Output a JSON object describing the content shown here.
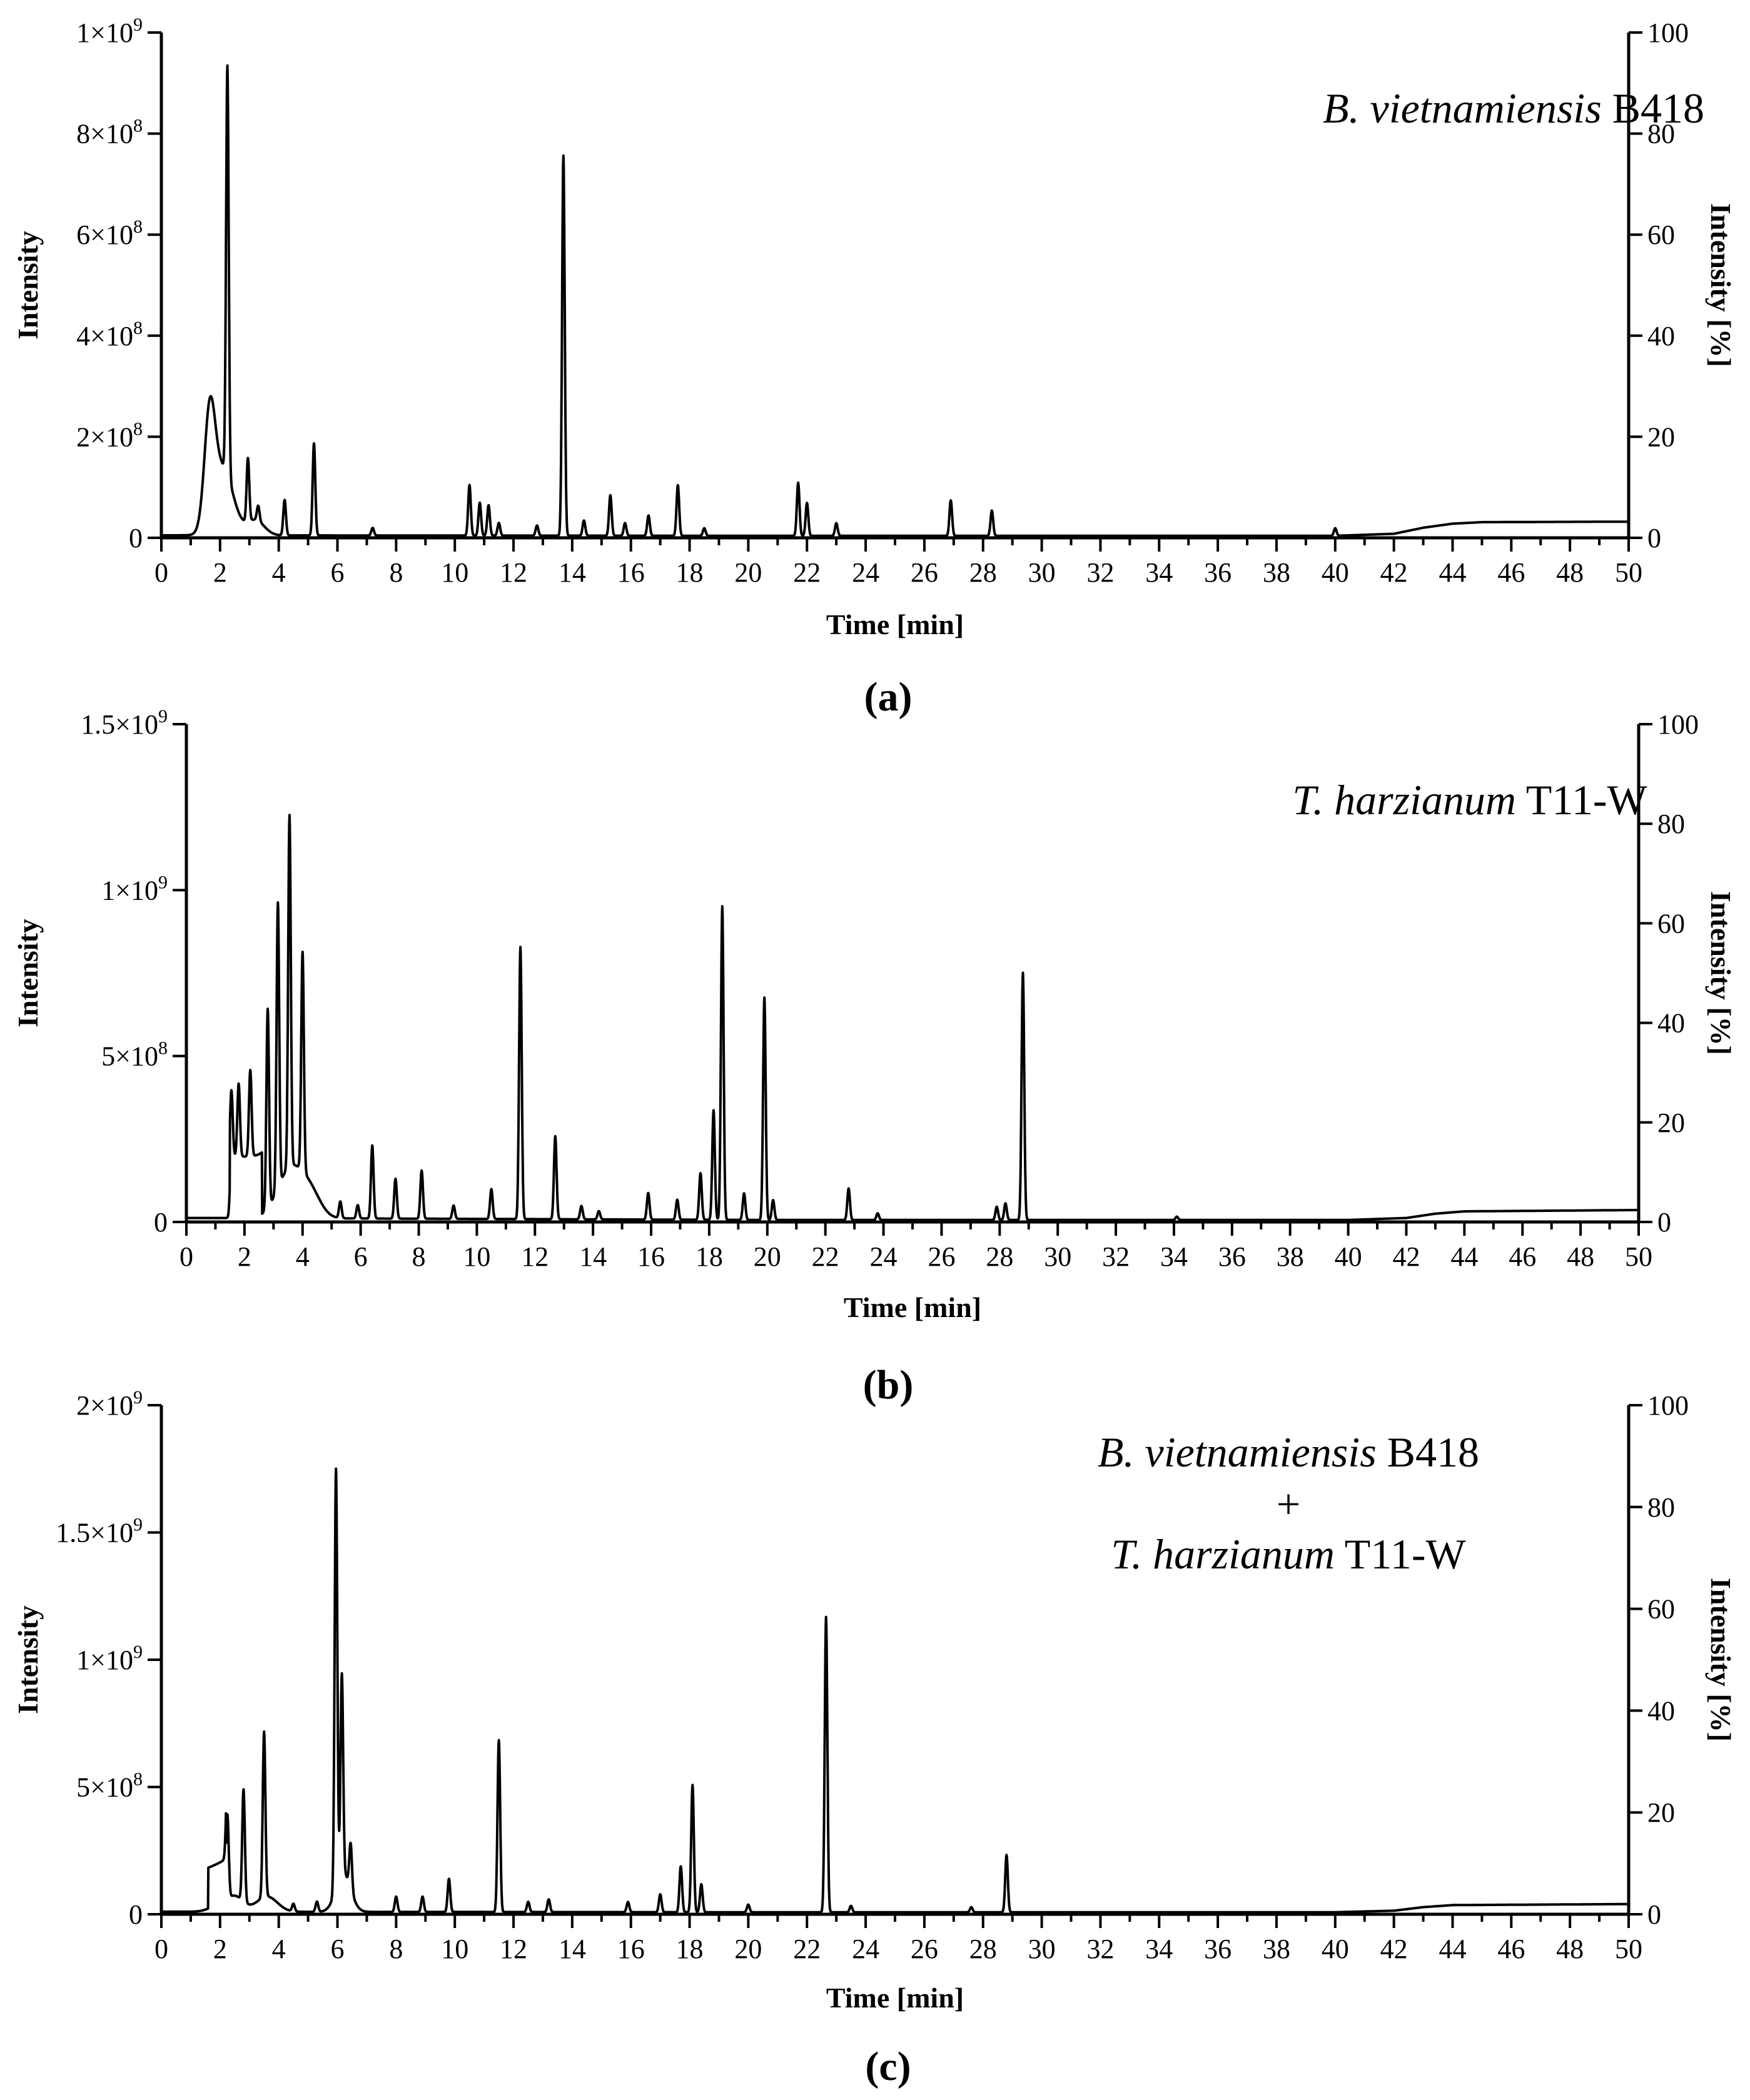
{
  "chart_data": [
    {
      "type": "line",
      "caption": "(a)",
      "annotation": [
        "B. vietnamiensis B418"
      ],
      "annotation_italic": [
        "B. vietnamiensis"
      ],
      "annotation_plain": [
        " B418"
      ],
      "xlabel": "Time [min]",
      "ylabel": "Intensity",
      "y2label": "Intensity [%]",
      "xlim": [
        0,
        50
      ],
      "ylim": [
        0,
        1000000000
      ],
      "y2lim": [
        0,
        100
      ],
      "x_ticks": [
        "0",
        "2",
        "4",
        "6",
        "8",
        "10",
        "12",
        "14",
        "16",
        "18",
        "20",
        "22",
        "24",
        "26",
        "28",
        "30",
        "32",
        "34",
        "36",
        "38",
        "40",
        "42",
        "44",
        "46",
        "48",
        "50"
      ],
      "y_ticks": [
        {
          "base": "0",
          "exp": ""
        },
        {
          "base": "2×10",
          "exp": "8"
        },
        {
          "base": "4×10",
          "exp": "8"
        },
        {
          "base": "6×10",
          "exp": "8"
        },
        {
          "base": "8×10",
          "exp": "8"
        },
        {
          "base": "1×10",
          "exp": "9"
        }
      ],
      "y_tick_values": [
        0,
        200000000,
        400000000,
        600000000,
        800000000,
        1000000000
      ],
      "y2_ticks": [
        "0",
        "20",
        "40",
        "60",
        "80",
        "100"
      ],
      "baseline": [
        [
          0,
          5000000
        ],
        [
          1.5,
          5000000
        ],
        [
          20,
          4000000
        ],
        [
          40,
          4000000
        ],
        [
          42,
          8000000
        ],
        [
          43,
          20000000
        ],
        [
          44,
          28000000
        ],
        [
          45,
          31000000
        ],
        [
          50,
          32000000
        ]
      ],
      "broad_peaks": [
        [
          1.65,
          215000000,
          0.18
        ],
        [
          2.1,
          130000000,
          0.35
        ],
        [
          3.2,
          30000000,
          0.3
        ]
      ],
      "peaks": [
        [
          2.25,
          810000000
        ],
        [
          2.95,
          125000000
        ],
        [
          3.3,
          30000000
        ],
        [
          4.2,
          70000000
        ],
        [
          5.2,
          182000000
        ],
        [
          7.2,
          15000000
        ],
        [
          10.5,
          100000000
        ],
        [
          10.85,
          65000000
        ],
        [
          11.15,
          60000000
        ],
        [
          11.5,
          25000000
        ],
        [
          12.8,
          20000000
        ],
        [
          13.7,
          752000000
        ],
        [
          14.4,
          30000000
        ],
        [
          15.3,
          80000000
        ],
        [
          15.8,
          25000000
        ],
        [
          16.6,
          40000000
        ],
        [
          17.6,
          100000000
        ],
        [
          18.5,
          15000000
        ],
        [
          21.7,
          105000000
        ],
        [
          22.0,
          65000000
        ],
        [
          23.0,
          25000000
        ],
        [
          26.9,
          70000000
        ],
        [
          28.3,
          50000000
        ],
        [
          40.0,
          15000000
        ]
      ]
    },
    {
      "type": "line",
      "caption": "(b)",
      "annotation": [
        "T. harzianum T11-W"
      ],
      "annotation_italic": [
        "T. harzianum"
      ],
      "annotation_plain": [
        " T11-W"
      ],
      "xlabel": "Time [min]",
      "ylabel": "Intensity",
      "y2label": "Intensity [%]",
      "xlim": [
        0,
        50
      ],
      "ylim": [
        0,
        1500000000
      ],
      "y2lim": [
        0,
        100
      ],
      "x_ticks": [
        "0",
        "2",
        "4",
        "6",
        "8",
        "10",
        "12",
        "14",
        "16",
        "18",
        "20",
        "22",
        "24",
        "26",
        "28",
        "30",
        "32",
        "34",
        "36",
        "38",
        "40",
        "42",
        "44",
        "46",
        "48",
        "50"
      ],
      "y_ticks": [
        {
          "base": "0",
          "exp": ""
        },
        {
          "base": "5×10",
          "exp": "8"
        },
        {
          "base": "1×10",
          "exp": "9"
        },
        {
          "base": "1.5×10",
          "exp": "9"
        }
      ],
      "y_tick_values": [
        0,
        500000000,
        1000000000,
        1500000000
      ],
      "y2_ticks": [
        "0",
        "20",
        "40",
        "60",
        "80",
        "100"
      ],
      "baseline": [
        [
          0,
          12000000
        ],
        [
          1.5,
          12000000
        ],
        [
          20,
          6000000
        ],
        [
          40,
          6000000
        ],
        [
          42,
          12000000
        ],
        [
          43,
          25000000
        ],
        [
          44,
          32000000
        ],
        [
          50,
          36000000
        ]
      ],
      "plateau": [
        [
          1.5,
          2.6,
          185000000
        ]
      ],
      "broad_peaks": [
        [
          3.6,
          150000000,
          0.45
        ],
        [
          4.3,
          60000000,
          0.35
        ]
      ],
      "peaks": [
        [
          1.55,
          200000000
        ],
        [
          1.8,
          220000000
        ],
        [
          2.2,
          260000000
        ],
        [
          2.8,
          600000000
        ],
        [
          3.15,
          860000000
        ],
        [
          3.55,
          1060000000
        ],
        [
          4.0,
          660000000
        ],
        [
          5.3,
          50000000
        ],
        [
          5.9,
          40000000
        ],
        [
          6.4,
          220000000
        ],
        [
          7.2,
          120000000
        ],
        [
          8.1,
          145000000
        ],
        [
          9.2,
          40000000
        ],
        [
          10.5,
          90000000
        ],
        [
          11.5,
          820000000
        ],
        [
          12.7,
          250000000
        ],
        [
          13.6,
          40000000
        ],
        [
          14.2,
          25000000
        ],
        [
          15.9,
          80000000
        ],
        [
          16.9,
          60000000
        ],
        [
          17.7,
          140000000
        ],
        [
          18.15,
          330000000
        ],
        [
          18.45,
          945000000
        ],
        [
          19.2,
          80000000
        ],
        [
          19.9,
          670000000
        ],
        [
          20.2,
          60000000
        ],
        [
          22.8,
          95000000
        ],
        [
          23.8,
          20000000
        ],
        [
          27.9,
          40000000
        ],
        [
          28.2,
          50000000
        ],
        [
          28.8,
          745000000
        ],
        [
          34.1,
          10000000
        ]
      ]
    },
    {
      "type": "line",
      "caption": "(c)",
      "annotation": [
        "B. vietnamiensis B418",
        "+",
        "T. harzianum T11-W"
      ],
      "annotation_italic": [
        "B. vietnamiensis",
        "",
        "T. harzianum"
      ],
      "annotation_plain": [
        " B418",
        "+",
        " T11-W"
      ],
      "xlabel": "Time [min]",
      "ylabel": "Intensity",
      "y2label": "Intensity [%]",
      "xlim": [
        0,
        50
      ],
      "ylim": [
        0,
        2000000000
      ],
      "y2lim": [
        0,
        100
      ],
      "x_ticks": [
        "0",
        "2",
        "4",
        "6",
        "8",
        "10",
        "12",
        "14",
        "16",
        "18",
        "20",
        "22",
        "24",
        "26",
        "28",
        "30",
        "32",
        "34",
        "36",
        "38",
        "40",
        "42",
        "44",
        "46",
        "48",
        "50"
      ],
      "y_ticks": [
        {
          "base": "0",
          "exp": ""
        },
        {
          "base": "5×10",
          "exp": "8"
        },
        {
          "base": "1×10",
          "exp": "9"
        },
        {
          "base": "1.5×10",
          "exp": "9"
        },
        {
          "base": "2×10",
          "exp": "9"
        }
      ],
      "y_tick_values": [
        0,
        500000000,
        1000000000,
        1500000000,
        2000000000
      ],
      "y2_ticks": [
        "0",
        "20",
        "40",
        "60",
        "80",
        "100"
      ],
      "baseline": [
        [
          0,
          10000000
        ],
        [
          1.5,
          10000000
        ],
        [
          20,
          8000000
        ],
        [
          40,
          8000000
        ],
        [
          42,
          14000000
        ],
        [
          43,
          28000000
        ],
        [
          44,
          36000000
        ],
        [
          50,
          40000000
        ]
      ],
      "plateau": [
        [
          1.6,
          2.2,
          160000000
        ]
      ],
      "broad_peaks": [
        [
          1.9,
          20000000,
          0.3
        ],
        [
          2.5,
          60000000,
          0.3
        ],
        [
          3.6,
          60000000,
          0.35
        ],
        [
          6.2,
          150000000,
          0.25
        ]
      ],
      "peaks": [
        [
          2.25,
          330000000
        ],
        [
          2.8,
          440000000
        ],
        [
          3.5,
          650000000
        ],
        [
          4.5,
          30000000
        ],
        [
          5.3,
          40000000
        ],
        [
          5.95,
          1650000000
        ],
        [
          6.15,
          790000000
        ],
        [
          6.45,
          180000000
        ],
        [
          8.0,
          60000000
        ],
        [
          8.9,
          60000000
        ],
        [
          9.8,
          130000000
        ],
        [
          11.5,
          675000000
        ],
        [
          12.5,
          40000000
        ],
        [
          13.2,
          50000000
        ],
        [
          15.9,
          40000000
        ],
        [
          17.0,
          70000000
        ],
        [
          17.7,
          180000000
        ],
        [
          18.1,
          500000000
        ],
        [
          18.4,
          110000000
        ],
        [
          20.0,
          30000000
        ],
        [
          22.65,
          1160000000
        ],
        [
          23.5,
          25000000
        ],
        [
          27.6,
          20000000
        ],
        [
          28.8,
          225000000
        ]
      ]
    }
  ]
}
